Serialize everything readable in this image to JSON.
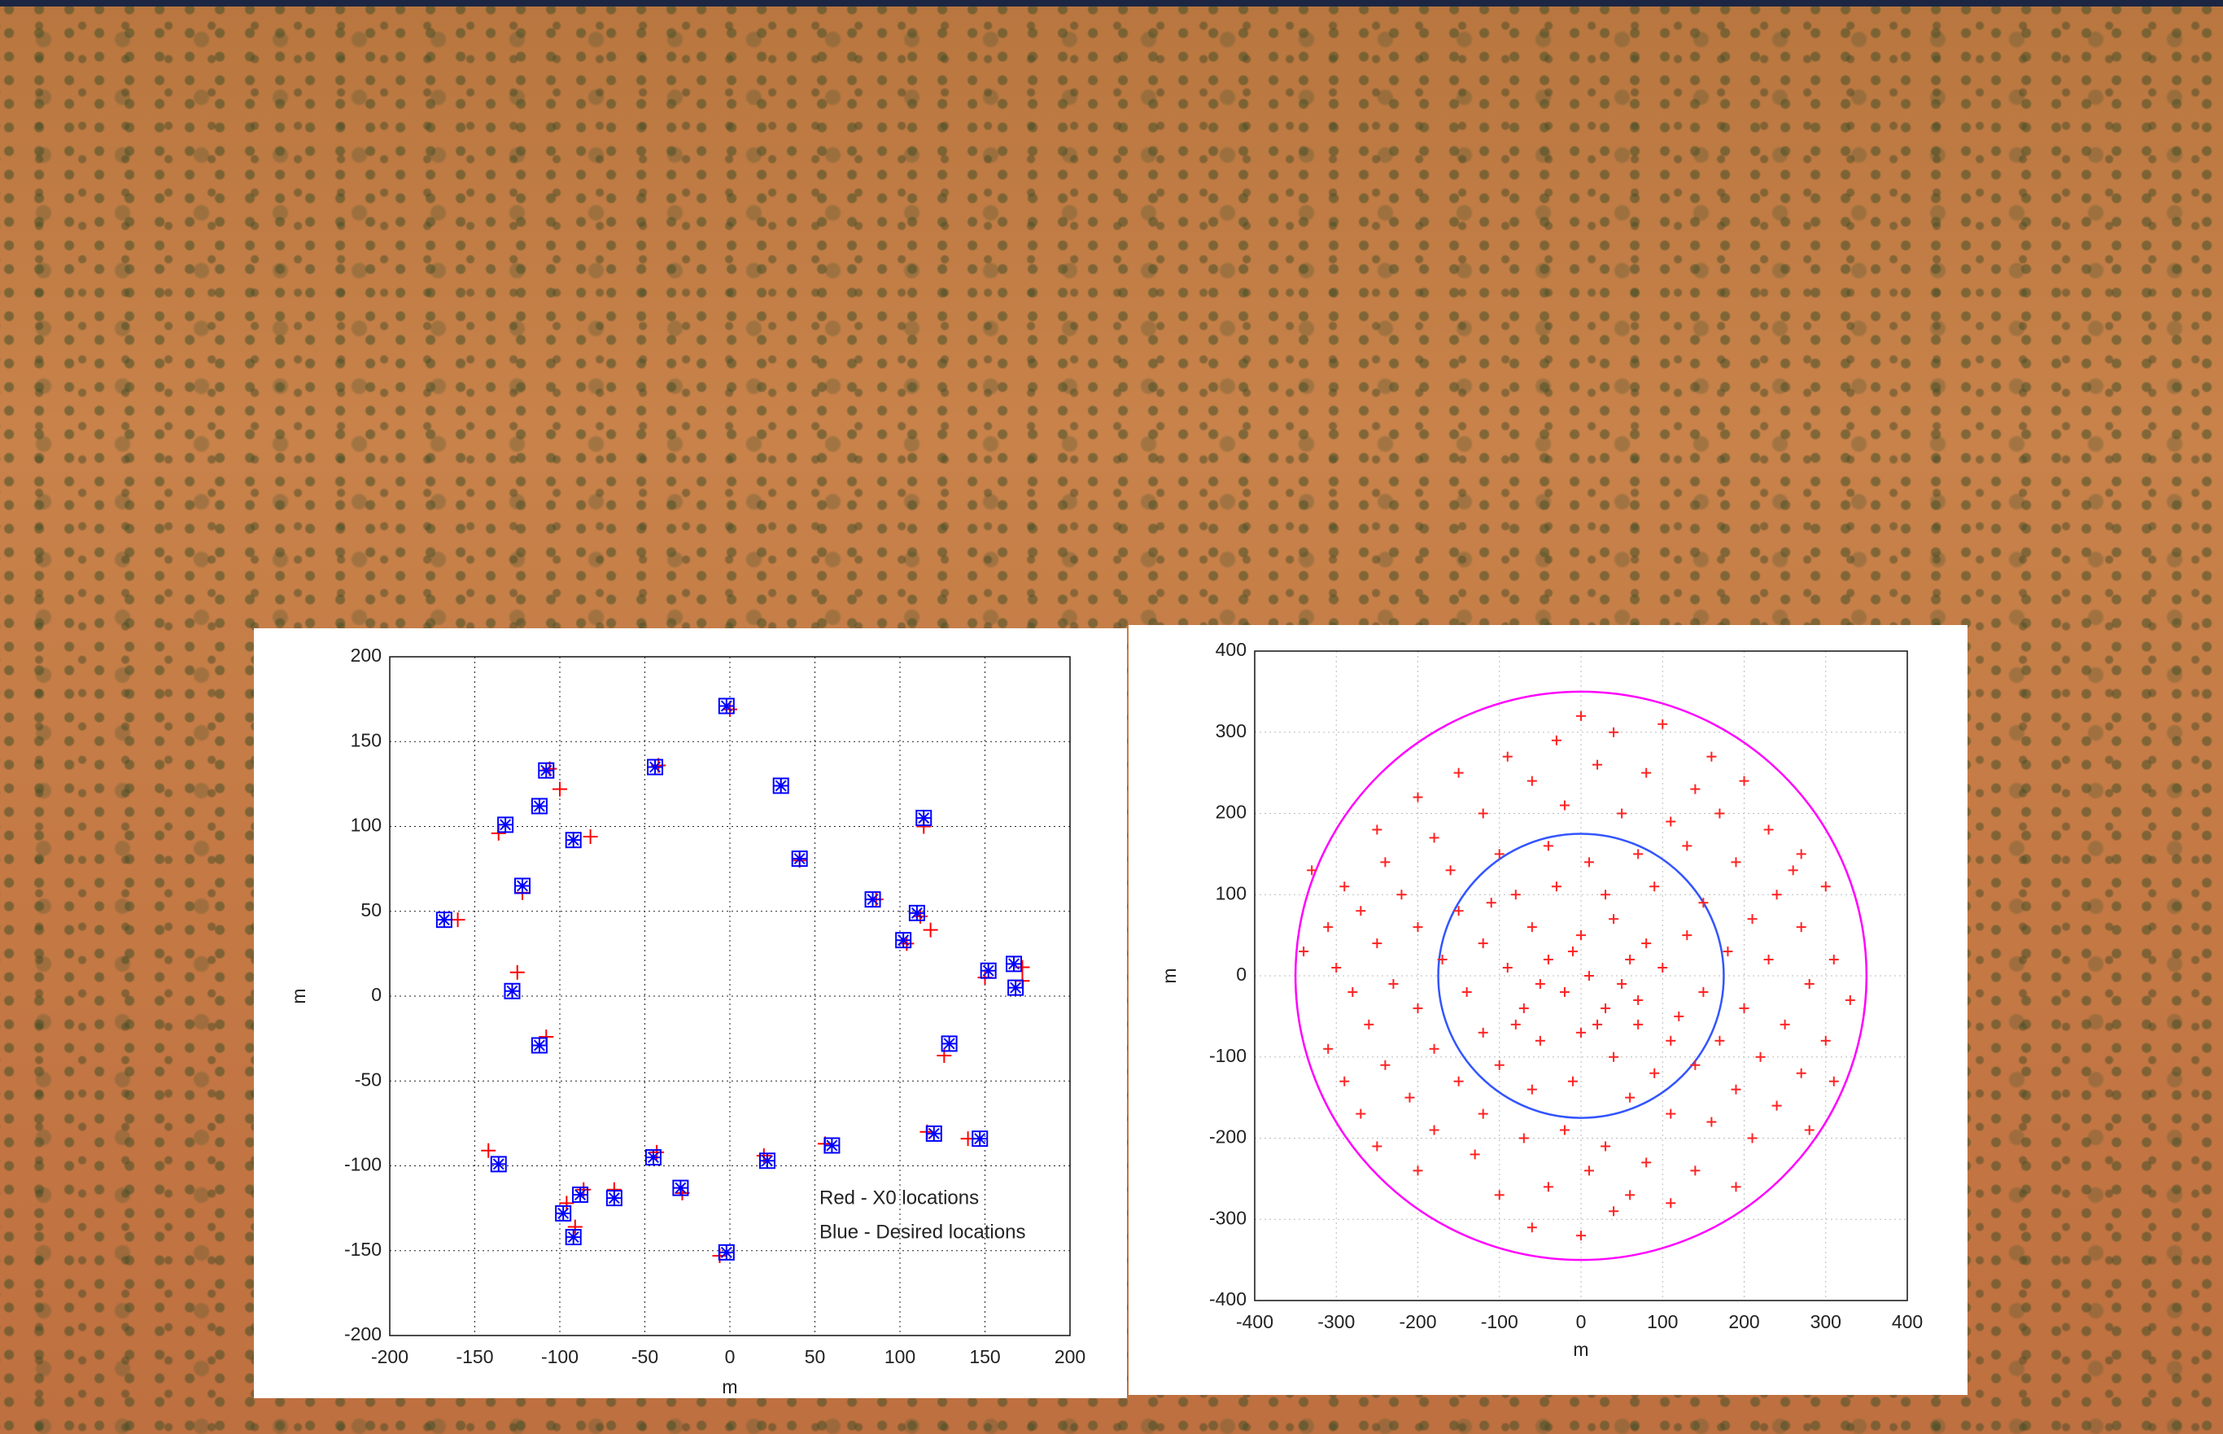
{
  "chart_data": [
    {
      "type": "scatter",
      "xlabel": "m",
      "ylabel": "m",
      "xlim": [
        -200,
        200
      ],
      "ylim": [
        -200,
        200
      ],
      "xticks": [
        -200,
        -150,
        -100,
        -50,
        0,
        50,
        100,
        150,
        200
      ],
      "yticks": [
        -200,
        -150,
        -100,
        -50,
        0,
        50,
        100,
        150,
        200
      ],
      "grid": true,
      "legend": "lower right",
      "series": [
        {
          "name": "Red - X0 locations",
          "color": "#ff0000",
          "marker": "plus",
          "x": [
            0,
            -106,
            -42,
            -136,
            -100,
            -82,
            -122,
            -160,
            -125,
            -108,
            30,
            41,
            114,
            86,
            112,
            104,
            118,
            172,
            150,
            172,
            126,
            116,
            140,
            56,
            20,
            -43,
            -28,
            -142,
            -68,
            -86,
            -96,
            -91,
            -6
          ],
          "values": [
            169,
            134,
            136,
            96,
            122,
            94,
            61,
            45,
            14,
            -24,
            124,
            80,
            100,
            57,
            47,
            31,
            39,
            17,
            11,
            9,
            -35,
            -80,
            -84,
            -87,
            -94,
            -92,
            -116,
            -91,
            -114,
            -114,
            -122,
            -136,
            -153
          ]
        },
        {
          "name": "Blue - Desired locations",
          "color": "#0000ff",
          "marker": "box-star",
          "x": [
            -2,
            -108,
            -44,
            -132,
            -112,
            -92,
            -122,
            -168,
            -128,
            -112,
            30,
            41,
            114,
            84,
            110,
            102,
            167,
            152,
            168,
            129,
            120,
            147,
            60,
            22,
            -45,
            -29,
            -136,
            -68,
            -88,
            -98,
            -92,
            -2
          ],
          "values": [
            171,
            133,
            135,
            101,
            112,
            92,
            65,
            45,
            3,
            -29,
            124,
            81,
            105,
            57,
            49,
            33,
            19,
            15,
            5,
            -28,
            -81,
            -84,
            -88,
            -97,
            -95,
            -113,
            -99,
            -119,
            -117,
            -128,
            -142,
            -151
          ]
        }
      ]
    },
    {
      "type": "scatter",
      "xlabel": "m",
      "ylabel": "m",
      "xlim": [
        -400,
        400
      ],
      "ylim": [
        -400,
        400
      ],
      "xticks": [
        -400,
        -300,
        -200,
        -100,
        0,
        100,
        200,
        300,
        400
      ],
      "yticks": [
        -400,
        -300,
        -200,
        -100,
        0,
        100,
        200,
        300,
        400
      ],
      "grid": true,
      "circles": [
        {
          "r": 350,
          "color": "#ff00ff"
        },
        {
          "r": 175,
          "color": "#3355ff"
        }
      ],
      "series": [
        {
          "color": "#ff2222",
          "marker": "plus",
          "x": [
            0,
            -30,
            40,
            100,
            -150,
            -90,
            160,
            -200,
            -250,
            -60,
            20,
            80,
            140,
            200,
            -330,
            -290,
            -240,
            -180,
            -120,
            -20,
            50,
            110,
            170,
            230,
            270,
            260,
            300,
            -310,
            -270,
            -220,
            -160,
            -100,
            -40,
            10,
            70,
            130,
            190,
            240,
            -340,
            -300,
            -250,
            -200,
            -150,
            -80,
            -30,
            30,
            90,
            150,
            210,
            270,
            310,
            -280,
            -230,
            -170,
            -120,
            -60,
            0,
            40,
            80,
            130,
            180,
            230,
            280,
            330,
            -310,
            -260,
            -200,
            -140,
            -90,
            -40,
            10,
            50,
            100,
            150,
            200,
            250,
            300,
            -290,
            -240,
            -180,
            -120,
            -70,
            -20,
            30,
            70,
            120,
            170,
            220,
            270,
            310,
            -270,
            -210,
            -150,
            -100,
            -50,
            0,
            40,
            90,
            140,
            190,
            240,
            280,
            -250,
            -180,
            -120,
            -60,
            -10,
            60,
            110,
            160,
            210,
            -200,
            -130,
            -70,
            -20,
            30,
            80,
            140,
            190,
            -100,
            -40,
            10,
            60,
            110,
            -60,
            0,
            40,
            -10,
            20,
            -50,
            60,
            -80,
            110,
            -110,
            70
          ],
          "values": [
            320,
            290,
            300,
            310,
            250,
            270,
            270,
            220,
            180,
            240,
            260,
            250,
            230,
            240,
            130,
            110,
            140,
            170,
            200,
            210,
            200,
            190,
            200,
            180,
            150,
            130,
            110,
            60,
            80,
            100,
            130,
            150,
            160,
            140,
            150,
            160,
            140,
            100,
            30,
            10,
            40,
            60,
            80,
            100,
            110,
            100,
            110,
            90,
            70,
            60,
            20,
            -20,
            -10,
            20,
            40,
            60,
            50,
            70,
            40,
            50,
            30,
            20,
            -10,
            -30,
            -90,
            -60,
            -40,
            -20,
            10,
            20,
            0,
            -10,
            10,
            -20,
            -40,
            -60,
            -80,
            -130,
            -110,
            -90,
            -70,
            -40,
            -20,
            -40,
            -60,
            -50,
            -80,
            -100,
            -120,
            -130,
            -170,
            -150,
            -130,
            -110,
            -80,
            -70,
            -100,
            -120,
            -110,
            -140,
            -160,
            -190,
            -210,
            -190,
            -170,
            -140,
            -130,
            -150,
            -170,
            -180,
            -200,
            -240,
            -220,
            -200,
            -190,
            -210,
            -230,
            -240,
            -260,
            -270,
            -260,
            -240,
            -270,
            -280,
            -310,
            -320,
            -290,
            30,
            -60,
            -10,
            20,
            -60,
            -80,
            90,
            -30
          ]
        }
      ]
    }
  ]
}
